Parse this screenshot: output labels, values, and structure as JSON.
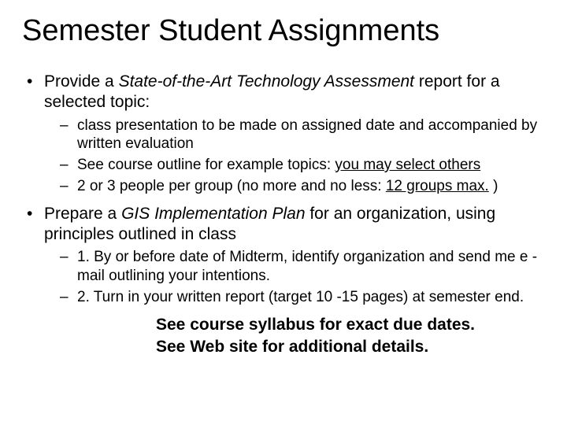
{
  "title": "Semester Student Assignments",
  "colors": {
    "background": "#ffffff",
    "text": "#000000"
  },
  "typography": {
    "title_fontsize": 38,
    "body_fontsize": 21,
    "sub_fontsize": 19,
    "font_family": "Arial"
  },
  "bullets": [
    {
      "pre": "Provide a ",
      "em": "State-of-the-Art Technology Assessment",
      "post": " report for a selected topic:",
      "subs": [
        {
          "text": "class presentation to be made on assigned date and accompanied by written evaluation"
        },
        {
          "pre": "See course outline for example  topics: ",
          "u": "you may select others"
        },
        {
          "pre": "2 or 3 people per group (no more and no less: ",
          "u": "12 groups max.",
          "post": " )"
        }
      ]
    },
    {
      "pre": "Prepare a ",
      "em": "GIS Implementation Plan",
      "post": " for an organization, using principles outlined in class",
      "subs": [
        {
          "text": "1. By or before date of Midterm, identify organization and send me e -mail outlining your intentions."
        },
        {
          "text": "2. Turn in your written report (target 10 -15 pages) at semester end."
        }
      ]
    }
  ],
  "footer": [
    "See course syllabus for exact due dates.",
    "See Web site for additional details."
  ]
}
